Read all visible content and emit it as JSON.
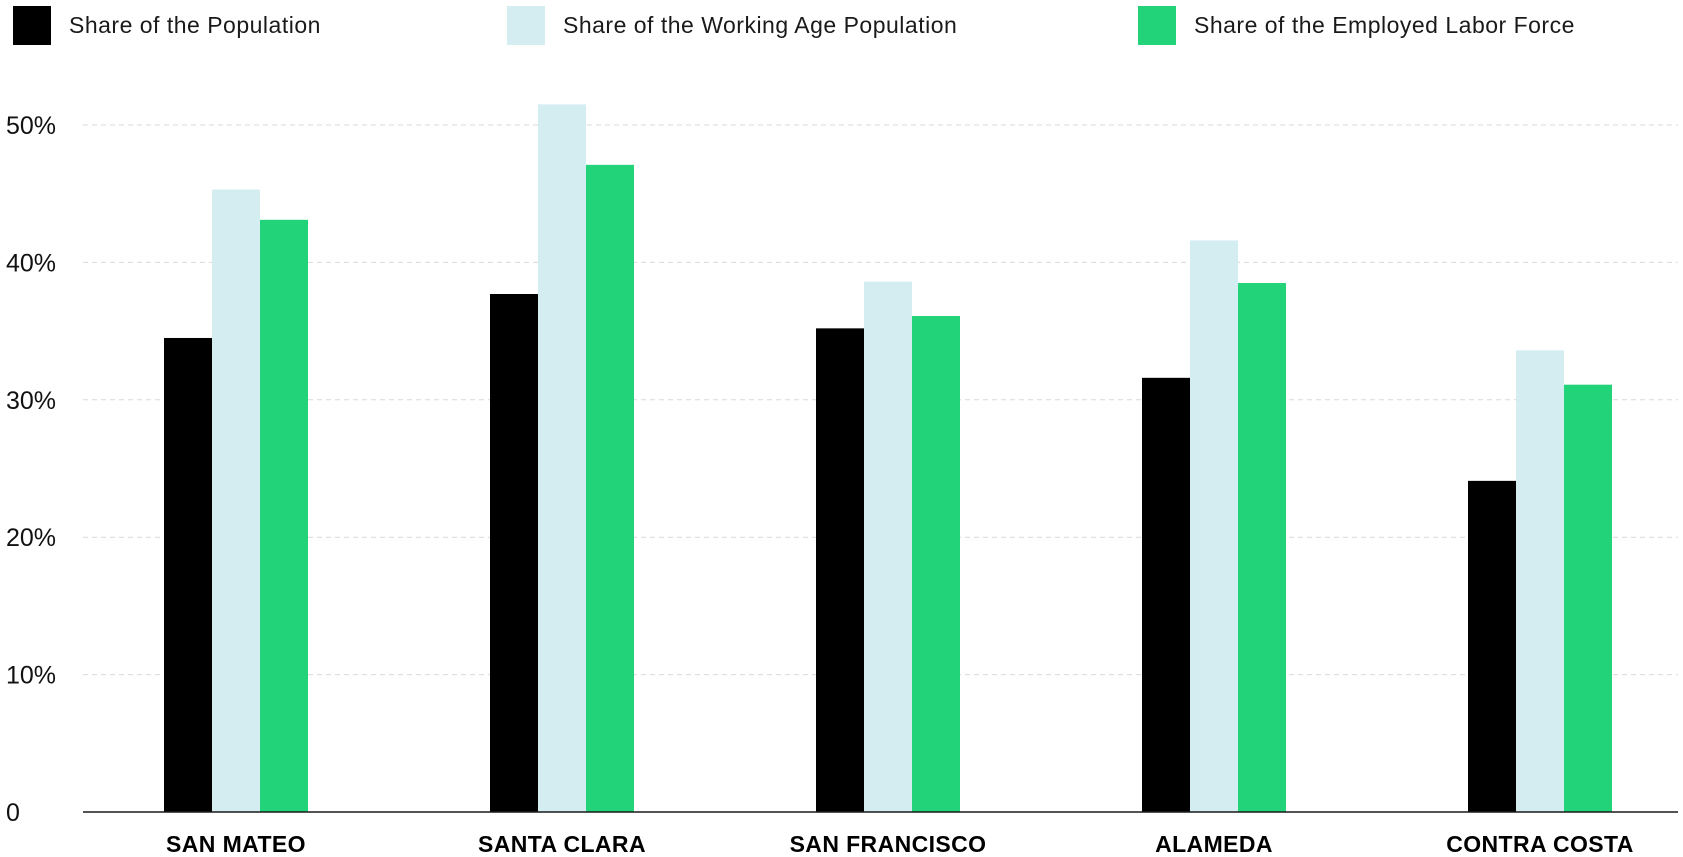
{
  "chart_data": {
    "type": "bar",
    "categories": [
      "SAN MATEO",
      "SANTA CLARA",
      "SAN FRANCISCO",
      "ALAMEDA",
      "CONTRA COSTA"
    ],
    "series": [
      {
        "name": "Share of the Population",
        "color": "#000000",
        "values": [
          34.5,
          37.7,
          35.2,
          31.6,
          24.1
        ]
      },
      {
        "name": "Share of the Working Age Population",
        "color": "#d3edf1",
        "values": [
          45.3,
          51.5,
          38.6,
          41.6,
          33.6
        ]
      },
      {
        "name": "Share of the Employed Labor Force",
        "color": "#22d37a",
        "values": [
          43.1,
          47.1,
          36.1,
          38.5,
          31.1
        ]
      }
    ],
    "yticks": [
      {
        "value": 0,
        "label": "0"
      },
      {
        "value": 10,
        "label": "10%"
      },
      {
        "value": 20,
        "label": "20%"
      },
      {
        "value": 30,
        "label": "30%"
      },
      {
        "value": 40,
        "label": "40%"
      },
      {
        "value": 50,
        "label": "50%"
      }
    ],
    "ylim": [
      0,
      52
    ],
    "grid": true,
    "legend_position": "top"
  }
}
